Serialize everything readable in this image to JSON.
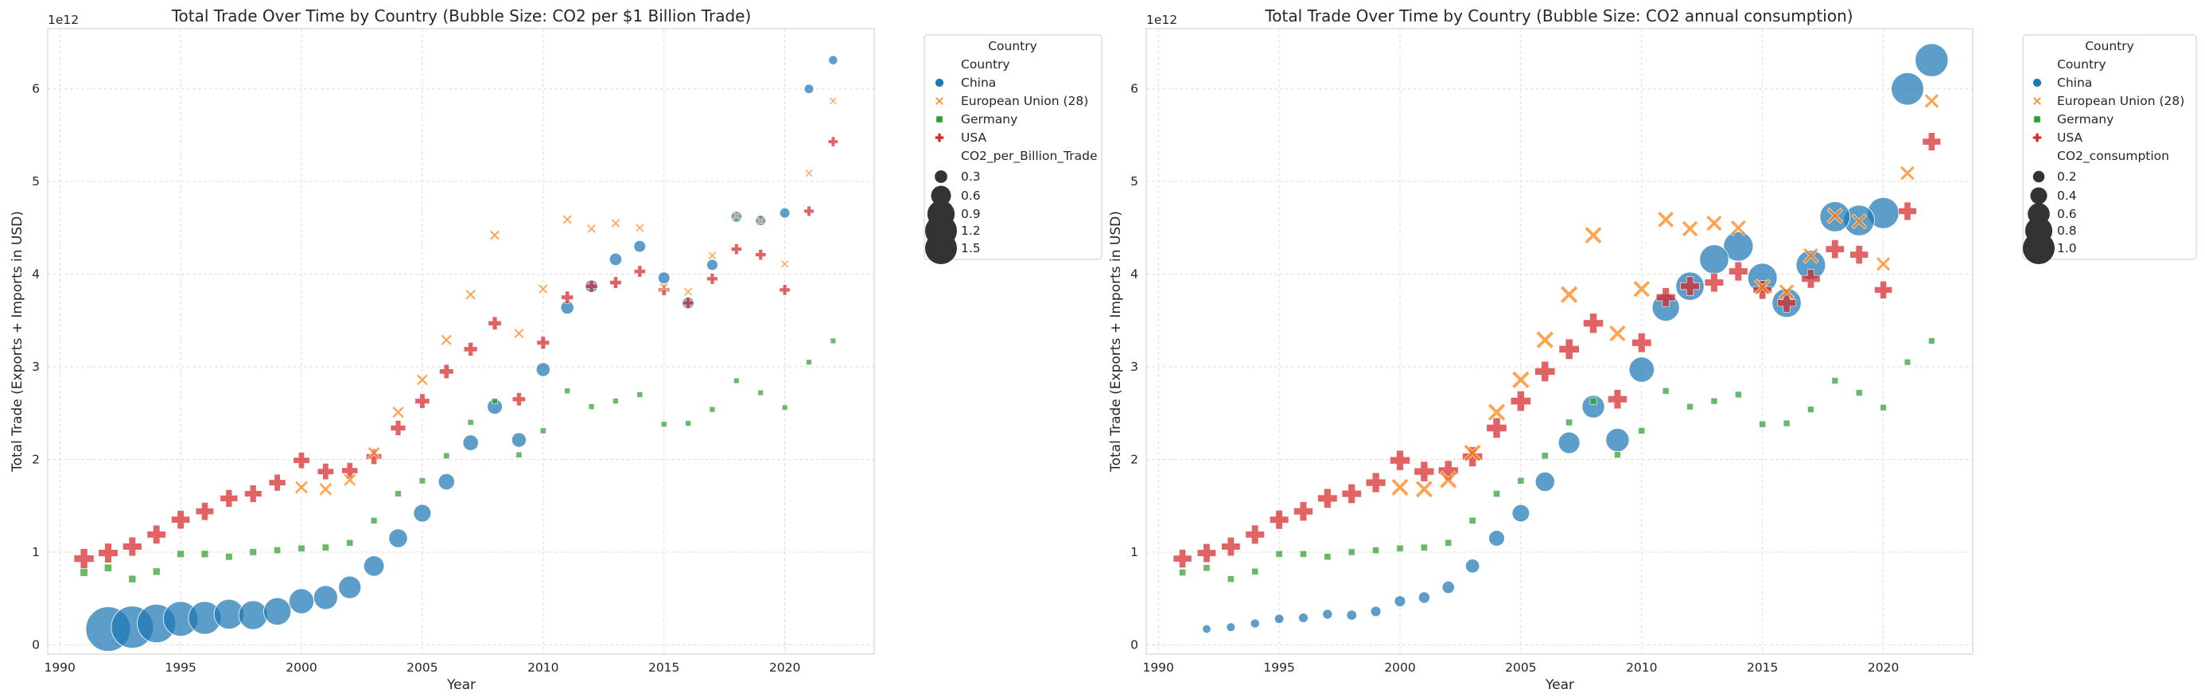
{
  "chart_data": [
    {
      "type": "scatter",
      "title": "Total Trade Over Time by Country (Bubble Size: CO2 per $1 Billion Trade)",
      "xlabel": "Year",
      "ylabel": "Total Trade (Exports + Imports in USD)",
      "y_offset_label": "1e12",
      "xlim": [
        1989.5,
        2023.7
      ],
      "ylim": [
        -0.1,
        6.65
      ],
      "xticks": [
        1990,
        1995,
        2000,
        2005,
        2010,
        2015,
        2020
      ],
      "xtick_labels": [
        "1990",
        "1995",
        "2000",
        "2005",
        "2010",
        "2015",
        "2020"
      ],
      "yticks": [
        0,
        1,
        2,
        3,
        4,
        5,
        6
      ],
      "ytick_labels": [
        "0",
        "1",
        "2",
        "3",
        "4",
        "5",
        "6"
      ],
      "grid": true,
      "legend_placement": "outside-right",
      "legend": {
        "title": "Country",
        "hue_title": "Country",
        "hue_entries": [
          "China",
          "European Union (28)",
          "Germany",
          "USA"
        ],
        "size_title": "CO2_per_Billion_Trade",
        "size_entries": [
          {
            "label": "0.3",
            "value": 0.3
          },
          {
            "label": "0.6",
            "value": 0.6
          },
          {
            "label": "0.9",
            "value": 0.9
          },
          {
            "label": "1.2",
            "value": 1.2
          },
          {
            "label": "1.5",
            "value": 1.5
          }
        ]
      },
      "size_range": [
        0.05,
        1.6
      ],
      "series": [
        {
          "name": "China",
          "marker": "circle",
          "color": "#1f77b4",
          "x": [
            1992,
            1993,
            1994,
            1995,
            1996,
            1997,
            1998,
            1999,
            2000,
            2001,
            2002,
            2003,
            2004,
            2005,
            2006,
            2007,
            2008,
            2009,
            2010,
            2011,
            2012,
            2013,
            2014,
            2015,
            2016,
            2017,
            2018,
            2019,
            2020,
            2021,
            2022
          ],
          "y": [
            0.17,
            0.19,
            0.23,
            0.28,
            0.29,
            0.33,
            0.32,
            0.36,
            0.47,
            0.51,
            0.62,
            0.85,
            1.15,
            1.42,
            1.76,
            2.18,
            2.57,
            2.21,
            2.97,
            3.64,
            3.87,
            4.16,
            4.3,
            3.96,
            3.69,
            4.1,
            4.62,
            4.58,
            4.66,
            6.0,
            6.31
          ],
          "size": [
            1.6,
            1.5,
            1.35,
            1.2,
            1.12,
            1.0,
            0.96,
            0.9,
            0.8,
            0.76,
            0.7,
            0.62,
            0.55,
            0.5,
            0.45,
            0.42,
            0.4,
            0.38,
            0.35,
            0.32,
            0.3,
            0.29,
            0.27,
            0.27,
            0.26,
            0.24,
            0.23,
            0.21,
            0.2,
            0.17,
            0.16
          ]
        },
        {
          "name": "European Union (28)",
          "marker": "x",
          "color": "#ff7f0e",
          "x": [
            2000,
            2001,
            2002,
            2003,
            2004,
            2005,
            2006,
            2007,
            2008,
            2009,
            2010,
            2011,
            2012,
            2013,
            2014,
            2015,
            2016,
            2017,
            2018,
            2019,
            2020,
            2021,
            2022
          ],
          "y": [
            1.7,
            1.68,
            1.78,
            2.07,
            2.51,
            2.86,
            3.29,
            3.78,
            4.42,
            3.36,
            3.84,
            4.59,
            4.49,
            4.55,
            4.5,
            3.86,
            3.81,
            4.2,
            4.63,
            4.57,
            4.11,
            5.09,
            5.87
          ],
          "size": [
            0.36,
            0.35,
            0.34,
            0.33,
            0.3,
            0.28,
            0.26,
            0.24,
            0.22,
            0.22,
            0.2,
            0.19,
            0.18,
            0.17,
            0.16,
            0.16,
            0.16,
            0.15,
            0.14,
            0.14,
            0.13,
            0.12,
            0.11
          ]
        },
        {
          "name": "Germany",
          "marker": "square",
          "color": "#2ca02c",
          "x": [
            1991,
            1992,
            1993,
            1994,
            1995,
            1996,
            1997,
            1998,
            1999,
            2000,
            2001,
            2002,
            2003,
            2004,
            2005,
            2006,
            2007,
            2008,
            2009,
            2010,
            2011,
            2012,
            2013,
            2014,
            2015,
            2016,
            2017,
            2018,
            2019,
            2020,
            2021,
            2022
          ],
          "y": [
            0.78,
            0.83,
            0.71,
            0.79,
            0.98,
            0.98,
            0.95,
            1.0,
            1.02,
            1.04,
            1.05,
            1.1,
            1.34,
            1.63,
            1.77,
            2.04,
            2.4,
            2.63,
            2.05,
            2.31,
            2.74,
            2.57,
            2.63,
            2.7,
            2.38,
            2.39,
            2.54,
            2.85,
            2.72,
            2.56,
            3.05,
            3.28
          ],
          "size": [
            0.2,
            0.19,
            0.18,
            0.18,
            0.17,
            0.17,
            0.16,
            0.16,
            0.15,
            0.15,
            0.15,
            0.14,
            0.13,
            0.12,
            0.12,
            0.11,
            0.1,
            0.1,
            0.1,
            0.1,
            0.09,
            0.09,
            0.09,
            0.09,
            0.09,
            0.09,
            0.09,
            0.08,
            0.08,
            0.08,
            0.08,
            0.08
          ]
        },
        {
          "name": "USA",
          "marker": "plus",
          "color": "#d62728",
          "x": [
            1991,
            1992,
            1993,
            1994,
            1995,
            1996,
            1997,
            1998,
            1999,
            2000,
            2001,
            2002,
            2003,
            2004,
            2005,
            2006,
            2007,
            2008,
            2009,
            2010,
            2011,
            2012,
            2013,
            2014,
            2015,
            2016,
            2017,
            2018,
            2019,
            2020,
            2021,
            2022
          ],
          "y": [
            0.93,
            0.99,
            1.06,
            1.19,
            1.35,
            1.44,
            1.58,
            1.63,
            1.75,
            1.99,
            1.87,
            1.88,
            2.03,
            2.34,
            2.63,
            2.95,
            3.19,
            3.47,
            2.65,
            3.26,
            3.75,
            3.87,
            3.91,
            4.03,
            3.83,
            3.69,
            3.95,
            4.27,
            4.21,
            3.83,
            4.68,
            5.43
          ],
          "size": [
            0.6,
            0.58,
            0.56,
            0.55,
            0.54,
            0.52,
            0.5,
            0.49,
            0.47,
            0.45,
            0.45,
            0.44,
            0.42,
            0.4,
            0.38,
            0.36,
            0.34,
            0.32,
            0.32,
            0.3,
            0.28,
            0.27,
            0.26,
            0.25,
            0.25,
            0.24,
            0.23,
            0.22,
            0.22,
            0.22,
            0.2,
            0.19
          ]
        }
      ]
    },
    {
      "type": "scatter",
      "title": "Total Trade Over Time by Country (Bubble Size: CO2 annual consumption)",
      "xlabel": "Year",
      "ylabel": "Total Trade (Exports + Imports in USD)",
      "y_offset_label": "1e12",
      "xlim": [
        1989.5,
        2023.7
      ],
      "ylim": [
        -0.1,
        6.65
      ],
      "xticks": [
        1990,
        1995,
        2000,
        2005,
        2010,
        2015,
        2020
      ],
      "xtick_labels": [
        "1990",
        "1995",
        "2000",
        "2005",
        "2010",
        "2015",
        "2020"
      ],
      "yticks": [
        0,
        1,
        2,
        3,
        4,
        5,
        6
      ],
      "ytick_labels": [
        "0",
        "1",
        "2",
        "3",
        "4",
        "5",
        "6"
      ],
      "grid": true,
      "legend_placement": "outside-right",
      "legend": {
        "title": "Country",
        "hue_title": "Country",
        "hue_entries": [
          "China",
          "European Union (28)",
          "Germany",
          "USA"
        ],
        "size_title": "CO2_consumption",
        "size_entries": [
          {
            "label": "0.2",
            "value": 0.2
          },
          {
            "label": "0.4",
            "value": 0.4
          },
          {
            "label": "0.6",
            "value": 0.6
          },
          {
            "label": "0.8",
            "value": 0.8
          },
          {
            "label": "1.0",
            "value": 1.0
          }
        ]
      },
      "size_range": [
        0.0,
        1.1
      ],
      "series": [
        {
          "name": "China",
          "marker": "circle",
          "color": "#1f77b4",
          "x": [
            1992,
            1993,
            1994,
            1995,
            1996,
            1997,
            1998,
            1999,
            2000,
            2001,
            2002,
            2003,
            2004,
            2005,
            2006,
            2007,
            2008,
            2009,
            2010,
            2011,
            2012,
            2013,
            2014,
            2015,
            2016,
            2017,
            2018,
            2019,
            2020,
            2021,
            2022
          ],
          "y": [
            0.17,
            0.19,
            0.23,
            0.28,
            0.29,
            0.33,
            0.32,
            0.36,
            0.47,
            0.51,
            0.62,
            0.85,
            1.15,
            1.42,
            1.76,
            2.18,
            2.57,
            2.21,
            2.97,
            3.64,
            3.87,
            4.16,
            4.3,
            3.96,
            3.69,
            4.1,
            4.62,
            4.58,
            4.66,
            6.0,
            6.31
          ],
          "size": [
            0.08,
            0.09,
            0.1,
            0.11,
            0.12,
            0.13,
            0.14,
            0.15,
            0.18,
            0.19,
            0.23,
            0.29,
            0.36,
            0.42,
            0.5,
            0.58,
            0.62,
            0.65,
            0.72,
            0.8,
            0.84,
            0.87,
            0.89,
            0.88,
            0.87,
            0.88,
            0.91,
            0.93,
            0.95,
            1.0,
            1.02
          ]
        },
        {
          "name": "European Union (28)",
          "marker": "x",
          "color": "#ff7f0e",
          "x": [
            2000,
            2001,
            2002,
            2003,
            2004,
            2005,
            2006,
            2007,
            2008,
            2009,
            2010,
            2011,
            2012,
            2013,
            2014,
            2015,
            2016,
            2017,
            2018,
            2019,
            2020,
            2021,
            2022
          ],
          "y": [
            1.7,
            1.68,
            1.78,
            2.07,
            2.51,
            2.86,
            3.29,
            3.78,
            4.42,
            3.36,
            3.84,
            4.59,
            4.49,
            4.55,
            4.5,
            3.86,
            3.81,
            4.2,
            4.63,
            4.57,
            4.11,
            5.09,
            5.87
          ],
          "size": [
            0.46,
            0.46,
            0.46,
            0.46,
            0.47,
            0.47,
            0.47,
            0.47,
            0.46,
            0.43,
            0.44,
            0.42,
            0.41,
            0.4,
            0.39,
            0.39,
            0.39,
            0.38,
            0.38,
            0.36,
            0.33,
            0.35,
            0.34
          ]
        },
        {
          "name": "Germany",
          "marker": "square",
          "color": "#2ca02c",
          "x": [
            1991,
            1992,
            1993,
            1994,
            1995,
            1996,
            1997,
            1998,
            1999,
            2000,
            2001,
            2002,
            2003,
            2004,
            2005,
            2006,
            2007,
            2008,
            2009,
            2010,
            2011,
            2012,
            2013,
            2014,
            2015,
            2016,
            2017,
            2018,
            2019,
            2020,
            2021,
            2022
          ],
          "y": [
            0.78,
            0.83,
            0.71,
            0.79,
            0.98,
            0.98,
            0.95,
            1.0,
            1.02,
            1.04,
            1.05,
            1.1,
            1.34,
            1.63,
            1.77,
            2.04,
            2.4,
            2.63,
            2.05,
            2.31,
            2.74,
            2.57,
            2.63,
            2.7,
            2.38,
            2.39,
            2.54,
            2.85,
            2.72,
            2.56,
            3.05,
            3.28
          ],
          "size": [
            0.09,
            0.09,
            0.09,
            0.09,
            0.09,
            0.09,
            0.09,
            0.09,
            0.09,
            0.09,
            0.09,
            0.09,
            0.09,
            0.09,
            0.09,
            0.09,
            0.09,
            0.09,
            0.08,
            0.08,
            0.08,
            0.08,
            0.08,
            0.08,
            0.08,
            0.08,
            0.08,
            0.08,
            0.08,
            0.07,
            0.07,
            0.07
          ]
        },
        {
          "name": "USA",
          "marker": "plus",
          "color": "#d62728",
          "x": [
            1991,
            1992,
            1993,
            1994,
            1995,
            1996,
            1997,
            1998,
            1999,
            2000,
            2001,
            2002,
            2003,
            2004,
            2005,
            2006,
            2007,
            2008,
            2009,
            2010,
            2011,
            2012,
            2013,
            2014,
            2015,
            2016,
            2017,
            2018,
            2019,
            2020,
            2021,
            2022
          ],
          "y": [
            0.93,
            0.99,
            1.06,
            1.19,
            1.35,
            1.44,
            1.58,
            1.63,
            1.75,
            1.99,
            1.87,
            1.88,
            2.03,
            2.34,
            2.63,
            2.95,
            3.19,
            3.47,
            2.65,
            3.26,
            3.75,
            3.87,
            3.91,
            4.03,
            3.83,
            3.69,
            3.95,
            4.27,
            4.21,
            3.83,
            4.68,
            5.43
          ],
          "size": [
            0.46,
            0.47,
            0.47,
            0.48,
            0.48,
            0.49,
            0.5,
            0.5,
            0.51,
            0.52,
            0.52,
            0.52,
            0.52,
            0.53,
            0.53,
            0.53,
            0.53,
            0.52,
            0.49,
            0.5,
            0.49,
            0.48,
            0.48,
            0.48,
            0.47,
            0.47,
            0.47,
            0.47,
            0.46,
            0.43,
            0.45,
            0.45
          ]
        }
      ]
    }
  ]
}
